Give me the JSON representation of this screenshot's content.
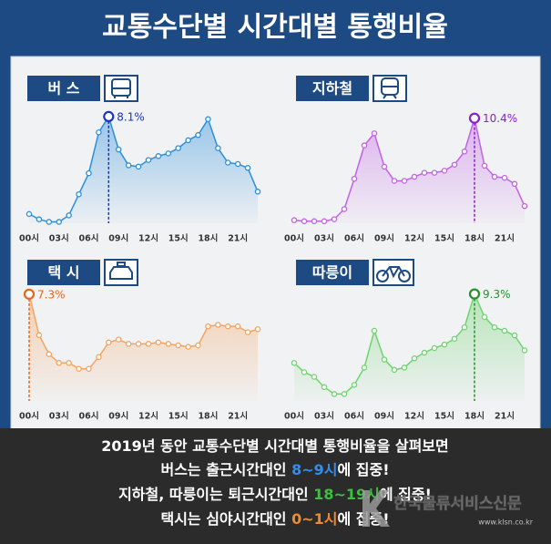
{
  "header": {
    "title": "교통수단별 시간대별 통행비율"
  },
  "chart_data": [
    {
      "type": "line",
      "title": "버 스",
      "color": "#2b8fd9",
      "label_color": "#1a35c0",
      "categories": [
        "00시",
        null,
        null,
        "03시",
        null,
        null,
        "06시",
        null,
        null,
        "09시",
        null,
        null,
        "12시",
        null,
        null,
        "15시",
        null,
        null,
        "18시",
        null,
        null,
        "21시",
        null,
        null
      ],
      "values": [
        0.7,
        0.3,
        0.1,
        0.1,
        0.6,
        2.2,
        3.8,
        6.9,
        8.1,
        5.6,
        4.4,
        4.3,
        4.8,
        5.1,
        5.3,
        5.7,
        6.3,
        6.7,
        7.9,
        5.7,
        4.6,
        4.5,
        4.2,
        2.4
      ],
      "value_labels": [
        null,
        null,
        null,
        null,
        null,
        null,
        null,
        null,
        "8.1%",
        null,
        null,
        null,
        null,
        null,
        null,
        null,
        null,
        null,
        null,
        null,
        null,
        null,
        null,
        null
      ],
      "ylim": [
        0,
        9.2
      ]
    },
    {
      "type": "line",
      "title": "지하철",
      "color": "#c262e6",
      "label_color": "#8a1fcc",
      "categories": [
        "00시",
        null,
        null,
        "03시",
        null,
        null,
        "06시",
        null,
        null,
        "09시",
        null,
        null,
        "12시",
        null,
        null,
        "15시",
        null,
        null,
        "18시",
        null,
        null,
        "21시",
        null,
        null
      ],
      "values": [
        0.3,
        0.2,
        0.2,
        0.2,
        0.4,
        1.4,
        4.4,
        7.7,
        8.9,
        5.6,
        4.2,
        4.2,
        4.6,
        5.0,
        5.0,
        5.2,
        5.8,
        7.1,
        10.4,
        5.7,
        4.6,
        4.5,
        3.9,
        1.7
      ],
      "value_labels": [
        null,
        null,
        null,
        null,
        null,
        null,
        null,
        null,
        null,
        null,
        null,
        null,
        null,
        null,
        null,
        null,
        null,
        null,
        "10.4%",
        null,
        null,
        null,
        null,
        null
      ],
      "ylim": [
        0,
        12
      ]
    },
    {
      "type": "line",
      "title": "택 시",
      "color": "#f4a460",
      "label_color": "#e8661a",
      "categories": [
        "00시",
        null,
        null,
        "03시",
        null,
        null,
        "06시",
        null,
        null,
        "09시",
        null,
        null,
        "12시",
        null,
        null,
        "15시",
        null,
        null,
        "18시",
        null,
        null,
        "21시",
        null,
        null
      ],
      "values": [
        7.3,
        4.5,
        3.2,
        2.6,
        2.6,
        2.2,
        2.2,
        3.0,
        4.0,
        4.2,
        3.9,
        3.9,
        3.9,
        4.0,
        3.9,
        3.8,
        3.7,
        3.8,
        5.1,
        5.2,
        5.1,
        5.1,
        4.7,
        4.9
      ],
      "value_labels": [
        "7.3%",
        null,
        null,
        null,
        null,
        null,
        null,
        null,
        null,
        null,
        null,
        null,
        null,
        null,
        null,
        null,
        null,
        null,
        null,
        null,
        null,
        null,
        null,
        null
      ],
      "ylim": [
        0,
        8.1
      ]
    },
    {
      "type": "line",
      "title": "따릉이",
      "color": "#6fd46f",
      "label_color": "#23912a",
      "categories": [
        "00시",
        null,
        null,
        "03시",
        null,
        null,
        "06시",
        null,
        null,
        "09시",
        null,
        null,
        "12시",
        null,
        null,
        "15시",
        null,
        null,
        "18시",
        null,
        null,
        "21시",
        null,
        null
      ],
      "values": [
        3.3,
        2.5,
        2.1,
        1.2,
        0.6,
        0.6,
        1.4,
        2.9,
        6.1,
        3.6,
        2.7,
        2.9,
        3.7,
        4.2,
        4.6,
        4.9,
        5.4,
        6.4,
        9.3,
        7.3,
        6.4,
        6.1,
        5.7,
        4.4
      ],
      "value_labels": [
        null,
        null,
        null,
        null,
        null,
        null,
        null,
        null,
        null,
        null,
        null,
        null,
        null,
        null,
        null,
        null,
        null,
        null,
        "9.3%",
        null,
        null,
        null,
        null,
        null
      ],
      "ylim": [
        0,
        10.3
      ]
    }
  ],
  "footer": {
    "lines": [
      [
        {
          "text": "2019년 동안 교통수단별 시간대별 통행비율을 살펴보면"
        }
      ],
      [
        {
          "text": "버스는 출근시간대인 "
        },
        {
          "text": "8~9시",
          "color": "#2f8ff0"
        },
        {
          "text": "에 집중!"
        }
      ],
      [
        {
          "text": "지하철, 따릉이는 퇴근시간대인 "
        },
        {
          "text": "18~19시",
          "color": "#3fbf3f"
        },
        {
          "text": "에 집중!"
        }
      ],
      [
        {
          "text": "택시는 심야시간대인 "
        },
        {
          "text": "0~1시",
          "color": "#f08a2a"
        },
        {
          "text": "에 집중!"
        }
      ]
    ]
  },
  "watermark": {
    "name": "한국물류서비스신문",
    "url": "www.klsn.co.kr"
  }
}
